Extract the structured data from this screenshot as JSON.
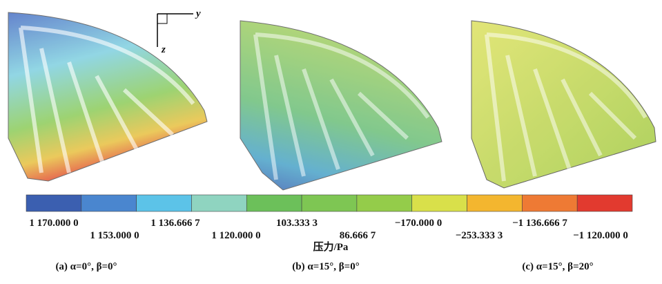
{
  "axes": {
    "y": "y",
    "z": "z"
  },
  "colorbar": {
    "colors": [
      "#3b5fb0",
      "#4a86cf",
      "#5cc3e8",
      "#8fd4c0",
      "#6cc05a",
      "#7ec653",
      "#94cc4a",
      "#d9e04a",
      "#f3b62f",
      "#ee7a34",
      "#e23a2f"
    ],
    "labels": [
      "1 170.000 0",
      "1 153.000 0",
      "1 136.666 7",
      "1 120.000 0",
      "103.333 3",
      "86.666 7",
      "−170.000 0",
      "−253.333 3",
      "−1 136.666 7",
      "−1 120.000 0"
    ],
    "unit": "压力/Pa"
  },
  "captions": [
    "(a) α=0°, β=0°",
    "(b) α=15°, β=0°",
    "(c) α=15°, β=20°"
  ]
}
